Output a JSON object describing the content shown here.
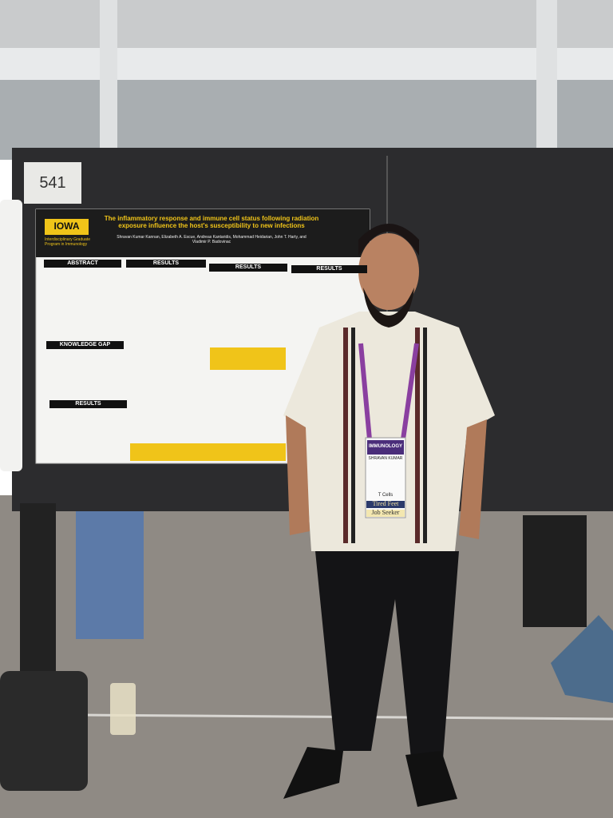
{
  "booth_number": "541",
  "poster": {
    "logo": "IOWA",
    "program": "Interdisciplinary Graduate Program in Immunology",
    "title": "The inflammatory response and immune cell status following radiation exposure influence the host's susceptibility to new infections",
    "authors": "Shravan Kumar Kannan, Elizabeth A. Escue, Andreas Kantaridis, Mohammad Heidarian, John T. Harty, and Vladimir P. Badovinac",
    "sections": [
      "ABSTRACT",
      "RESULTS",
      "RESULTS",
      "RESULTS",
      "KNOWLEDGE GAP",
      "RESULTS"
    ]
  },
  "badge": {
    "event": "IMMUNOLOGY",
    "name": "SHRAVAN KUMAR",
    "ribbons": [
      "T Cells",
      "Tired Feet",
      "Job Seeker"
    ]
  }
}
